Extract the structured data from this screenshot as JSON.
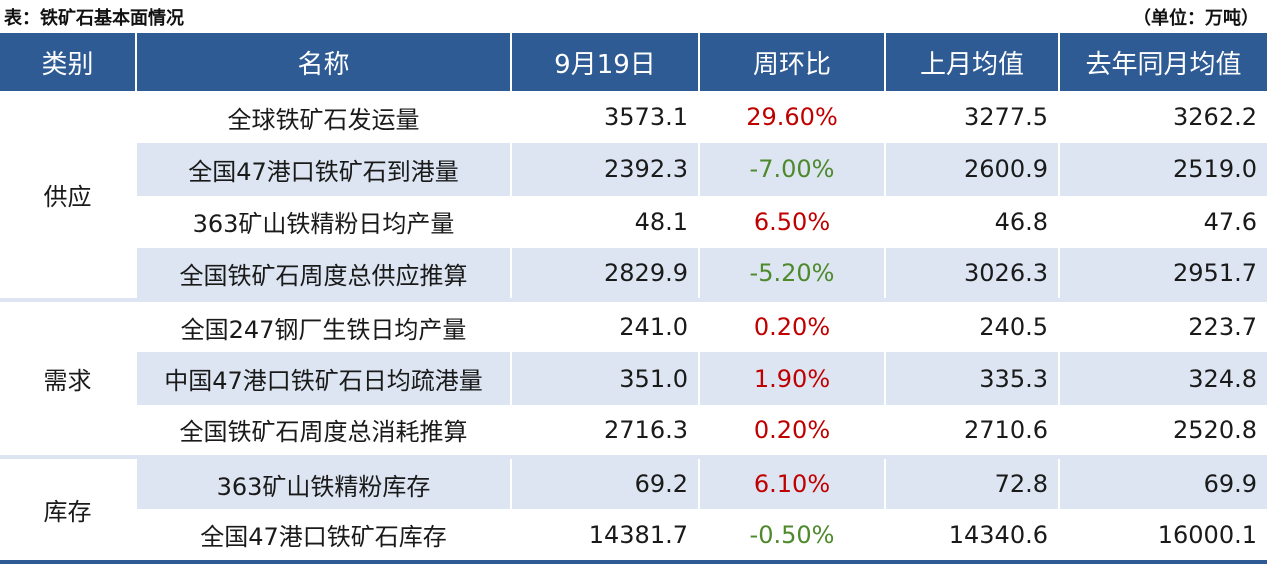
{
  "caption": "表：铁矿石基本面情况",
  "unit": "（单位：万吨）",
  "colors": {
    "header_bg": "#2e5b94",
    "row_shade": "#dce5f1",
    "positive": "#c00000",
    "negative": "#4e8a2c"
  },
  "headers": [
    "类别",
    "名称",
    "9月19日",
    "周环比",
    "上月均值",
    "去年同月均值"
  ],
  "groups": [
    {
      "category": "供应",
      "rows": [
        {
          "name": "全球铁矿石发运量",
          "value": "3573.1",
          "wow": "29.60%",
          "wow_sign": "pos",
          "last_month": "3277.5",
          "last_year": "3262.2"
        },
        {
          "name": "全国47港口铁矿石到港量",
          "value": "2392.3",
          "wow": "-7.00%",
          "wow_sign": "neg",
          "last_month": "2600.9",
          "last_year": "2519.0"
        },
        {
          "name": "363矿山铁精粉日均产量",
          "value": "48.1",
          "wow": "6.50%",
          "wow_sign": "pos",
          "last_month": "46.8",
          "last_year": "47.6"
        },
        {
          "name": "全国铁矿石周度总供应推算",
          "value": "2829.9",
          "wow": "-5.20%",
          "wow_sign": "neg",
          "last_month": "3026.3",
          "last_year": "2951.7"
        }
      ]
    },
    {
      "category": "需求",
      "rows": [
        {
          "name": "全国247钢厂生铁日均产量",
          "value": "241.0",
          "wow": "0.20%",
          "wow_sign": "pos",
          "last_month": "240.5",
          "last_year": "223.7"
        },
        {
          "name": "中国47港口铁矿石日均疏港量",
          "value": "351.0",
          "wow": "1.90%",
          "wow_sign": "pos",
          "last_month": "335.3",
          "last_year": "324.8"
        },
        {
          "name": "全国铁矿石周度总消耗推算",
          "value": "2716.3",
          "wow": "0.20%",
          "wow_sign": "pos",
          "last_month": "2710.6",
          "last_year": "2520.8"
        }
      ]
    },
    {
      "category": "库存",
      "rows": [
        {
          "name": "363矿山铁精粉库存",
          "value": "69.2",
          "wow": "6.10%",
          "wow_sign": "pos",
          "last_month": "72.8",
          "last_year": "69.9"
        },
        {
          "name": "全国47港口铁矿石库存",
          "value": "14381.7",
          "wow": "-0.50%",
          "wow_sign": "neg",
          "last_month": "14340.6",
          "last_year": "16000.1"
        }
      ]
    }
  ]
}
